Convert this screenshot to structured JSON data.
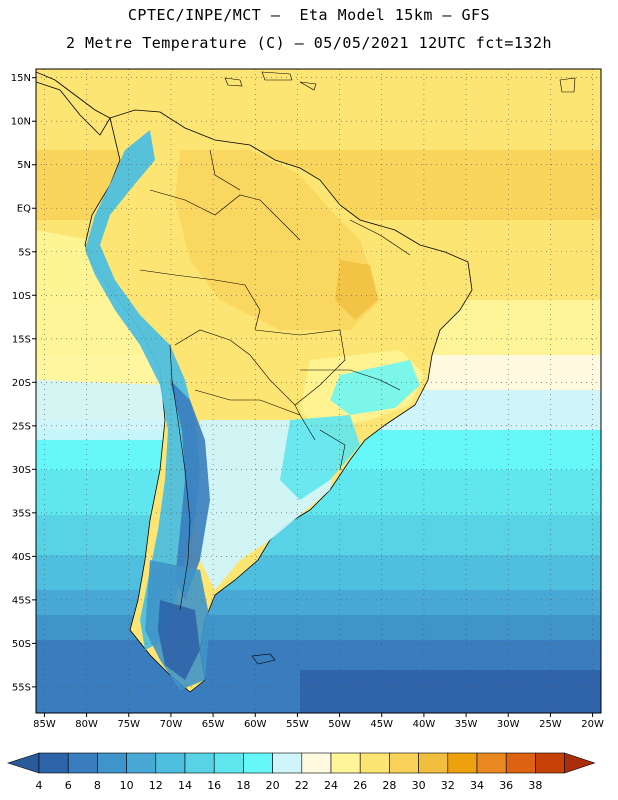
{
  "header": {
    "line1": "CPTEC/INPE/MCT –  Eta Model 15km – GFS",
    "line2": "2 Metre Temperature (C) – 05/05/2021 12UTC fct=132h"
  },
  "map": {
    "lon_range": [
      -86,
      -19
    ],
    "lat_range": [
      -58,
      16
    ],
    "lat_ticks": [
      {
        "v": 15,
        "label": "15N"
      },
      {
        "v": 10,
        "label": "10N"
      },
      {
        "v": 5,
        "label": "5N"
      },
      {
        "v": 0,
        "label": "EQ"
      },
      {
        "v": -5,
        "label": "5S"
      },
      {
        "v": -10,
        "label": "10S"
      },
      {
        "v": -15,
        "label": "15S"
      },
      {
        "v": -20,
        "label": "20S"
      },
      {
        "v": -25,
        "label": "25S"
      },
      {
        "v": -30,
        "label": "30S"
      },
      {
        "v": -35,
        "label": "35S"
      },
      {
        "v": -40,
        "label": "40S"
      },
      {
        "v": -45,
        "label": "45S"
      },
      {
        "v": -50,
        "label": "50S"
      },
      {
        "v": -55,
        "label": "55S"
      }
    ],
    "lon_ticks": [
      {
        "v": -85,
        "label": "85W"
      },
      {
        "v": -80,
        "label": "80W"
      },
      {
        "v": -75,
        "label": "75W"
      },
      {
        "v": -70,
        "label": "70W"
      },
      {
        "v": -65,
        "label": "65W"
      },
      {
        "v": -60,
        "label": "60W"
      },
      {
        "v": -55,
        "label": "55W"
      },
      {
        "v": -50,
        "label": "50W"
      },
      {
        "v": -45,
        "label": "45W"
      },
      {
        "v": -40,
        "label": "40W"
      },
      {
        "v": -35,
        "label": "35W"
      },
      {
        "v": -30,
        "label": "30W"
      },
      {
        "v": -25,
        "label": "25W"
      },
      {
        "v": -20,
        "label": "20W"
      }
    ],
    "grid": "dotted"
  },
  "colorbar": {
    "labels": [
      "4",
      "6",
      "8",
      "10",
      "12",
      "14",
      "16",
      "18",
      "20",
      "22",
      "24",
      "26",
      "28",
      "30",
      "32",
      "34",
      "36",
      "38"
    ],
    "colors": [
      "#2e64aa",
      "#3a7dbf",
      "#3f95c9",
      "#49a9d6",
      "#4fbfdf",
      "#58d3e6",
      "#5fe6ee",
      "#66f7f9",
      "#cff5fb",
      "#fff9e0",
      "#fff598",
      "#fde573",
      "#f8d258",
      "#f1be40",
      "#eda10f",
      "#e9891f",
      "#dd6312",
      "#c64104",
      "#aa2e0a"
    ],
    "under_color": "#2a5a9a"
  }
}
